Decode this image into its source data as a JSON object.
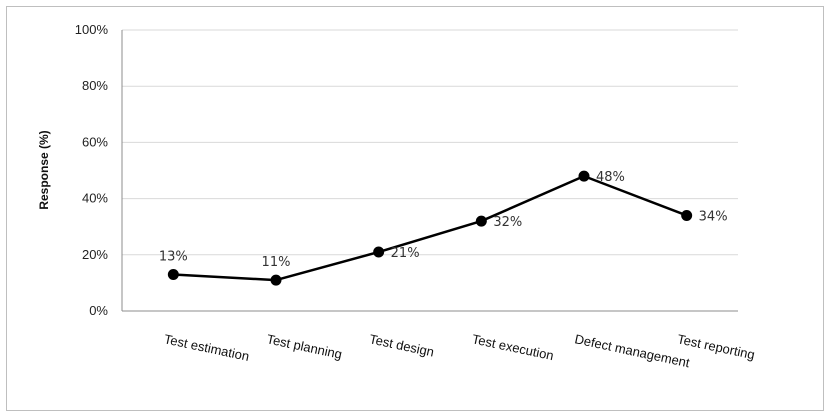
{
  "chart_data": {
    "type": "line",
    "title": "",
    "xlabel": "",
    "ylabel": "Response (%)",
    "categories": [
      "Test estimation",
      "Test planning",
      "Test design",
      "Test execution",
      "Defect management",
      "Test reporting"
    ],
    "series": [
      {
        "values": [
          13,
          11,
          21,
          32,
          48,
          34
        ],
        "data_labels": [
          "13%",
          "11%",
          "21%",
          "32%",
          "48%",
          "34%"
        ]
      }
    ],
    "yticks": [
      "0%",
      "20%",
      "40%",
      "60%",
      "80%",
      "100%"
    ],
    "ylim": [
      0,
      100
    ],
    "grid": true,
    "legend": "none",
    "colors": {
      "line": "#000000",
      "grid": "#d9d9d9",
      "frame": "#bfbfbf"
    }
  }
}
